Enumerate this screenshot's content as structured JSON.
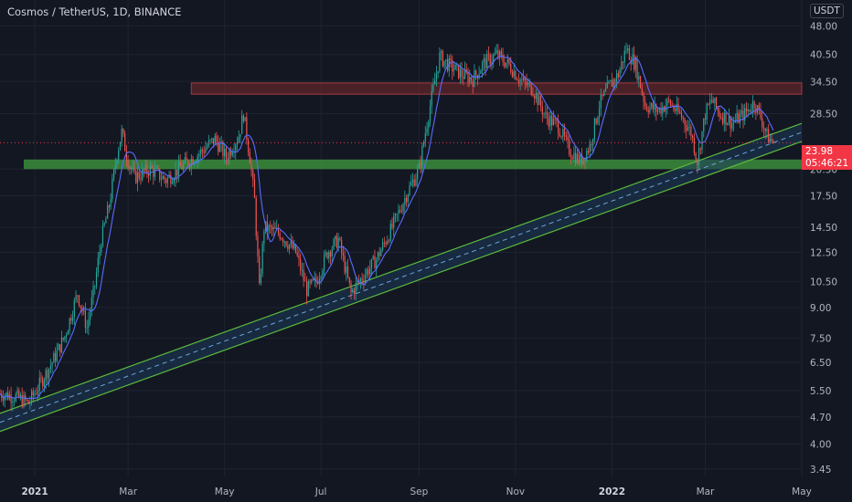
{
  "header": {
    "title": "Cosmos / TetherUS, 1D, BINANCE",
    "currency": "USDT",
    "cut_top_tick": "5"
  },
  "last_price": {
    "value": "23.98",
    "countdown": "05:46:21"
  },
  "colors": {
    "background": "#131722",
    "up_candle": "#26a69a",
    "down_candle": "#ef5350",
    "moving_average": "#5a6cff",
    "trendline": "#5dbb3a",
    "support_zone": "#3c8d3c",
    "resistance_zone": "#7a2a2e",
    "last_price_tag": "#f23645"
  },
  "chart_data": {
    "type": "candlestick",
    "scale": "log",
    "y_tick_labels": [
      "48.00",
      "40.50",
      "34.50",
      "28.50",
      "20.50",
      "17.50",
      "14.50",
      "12.50",
      "10.50",
      "9.00",
      "7.50",
      "6.50",
      "5.50",
      "4.70",
      "4.00",
      "3.45"
    ],
    "y_ticks": [
      48.0,
      40.5,
      34.5,
      28.5,
      20.5,
      17.5,
      14.5,
      12.5,
      10.5,
      9.0,
      7.5,
      6.5,
      5.5,
      4.7,
      4.0,
      3.45
    ],
    "ylim": [
      3.3,
      56
    ],
    "x_tick_labels": [
      "2021",
      "Mar",
      "May",
      "Jul",
      "Sep",
      "Nov",
      "2022",
      "Mar",
      "May"
    ],
    "x_ticks": [
      "2021-01-01",
      "2021-03-01",
      "2021-05-01",
      "2021-07-01",
      "2021-09-01",
      "2021-11-01",
      "2022-01-01",
      "2022-03-01",
      "2022-05-01"
    ],
    "xlim": [
      "2020-12-10",
      "2022-05-01"
    ],
    "last_date": "2022-04-13",
    "grid": true,
    "price_path": [
      [
        "2020-12-10",
        5.4
      ],
      [
        "2020-12-20",
        5.3
      ],
      [
        "2020-12-28",
        5.1
      ],
      [
        "2021-01-03",
        5.6
      ],
      [
        "2021-01-12",
        6.5
      ],
      [
        "2021-01-20",
        7.6
      ],
      [
        "2021-01-28",
        9.8
      ],
      [
        "2021-02-03",
        8.0
      ],
      [
        "2021-02-08",
        10.3
      ],
      [
        "2021-02-12",
        13.5
      ],
      [
        "2021-02-17",
        16.5
      ],
      [
        "2021-02-22",
        22.5
      ],
      [
        "2021-02-25",
        25.5
      ],
      [
        "2021-03-01",
        21.5
      ],
      [
        "2021-03-05",
        19.5
      ],
      [
        "2021-03-15",
        20.5
      ],
      [
        "2021-03-25",
        19.2
      ],
      [
        "2021-04-05",
        21.0
      ],
      [
        "2021-04-15",
        22.5
      ],
      [
        "2021-04-25",
        24.5
      ],
      [
        "2021-05-02",
        22.0
      ],
      [
        "2021-05-10",
        25.0
      ],
      [
        "2021-05-13",
        28.5
      ],
      [
        "2021-05-17",
        22.0
      ],
      [
        "2021-05-20",
        17.0
      ],
      [
        "2021-05-23",
        10.0
      ],
      [
        "2021-05-26",
        14.5
      ],
      [
        "2021-06-05",
        14.0
      ],
      [
        "2021-06-15",
        12.5
      ],
      [
        "2021-06-22",
        10.0
      ],
      [
        "2021-06-28",
        10.5
      ],
      [
        "2021-07-05",
        12.5
      ],
      [
        "2021-07-12",
        13.5
      ],
      [
        "2021-07-20",
        9.8
      ],
      [
        "2021-07-25",
        10.5
      ],
      [
        "2021-08-05",
        12.0
      ],
      [
        "2021-08-15",
        14.5
      ],
      [
        "2021-08-25",
        18.0
      ],
      [
        "2021-09-01",
        20.5
      ],
      [
        "2021-09-06",
        27.0
      ],
      [
        "2021-09-10",
        33.0
      ],
      [
        "2021-09-14",
        40.0
      ],
      [
        "2021-09-20",
        38.0
      ],
      [
        "2021-09-28",
        36.0
      ],
      [
        "2021-10-05",
        35.0
      ],
      [
        "2021-10-12",
        38.5
      ],
      [
        "2021-10-20",
        40.5
      ],
      [
        "2021-10-28",
        38.0
      ],
      [
        "2021-11-05",
        34.5
      ],
      [
        "2021-11-12",
        33.0
      ],
      [
        "2021-11-20",
        28.0
      ],
      [
        "2021-11-28",
        26.5
      ],
      [
        "2021-12-05",
        23.0
      ],
      [
        "2021-12-12",
        21.5
      ],
      [
        "2021-12-18",
        23.5
      ],
      [
        "2021-12-24",
        30.0
      ],
      [
        "2021-12-30",
        33.5
      ],
      [
        "2022-01-05",
        36.0
      ],
      [
        "2022-01-10",
        42.0
      ],
      [
        "2022-01-16",
        38.0
      ],
      [
        "2022-01-22",
        30.0
      ],
      [
        "2022-01-30",
        29.0
      ],
      [
        "2022-02-06",
        30.5
      ],
      [
        "2022-02-14",
        28.0
      ],
      [
        "2022-02-20",
        25.5
      ],
      [
        "2022-02-24",
        21.5
      ],
      [
        "2022-03-01",
        28.5
      ],
      [
        "2022-03-05",
        31.0
      ],
      [
        "2022-03-10",
        28.5
      ],
      [
        "2022-03-18",
        27.0
      ],
      [
        "2022-03-26",
        28.5
      ],
      [
        "2022-04-01",
        30.5
      ],
      [
        "2022-04-05",
        28.0
      ],
      [
        "2022-04-09",
        25.0
      ],
      [
        "2022-04-13",
        23.98
      ]
    ],
    "zones": {
      "resistance": {
        "from": 32.0,
        "to": 34.2,
        "start": "2021-04-10",
        "end": "2022-05-01"
      },
      "support": {
        "from": 20.5,
        "to": 21.7,
        "start": "2020-12-25",
        "end": "2022-05-01"
      }
    },
    "ascending_channel": {
      "start": {
        "date": "2020-12-10",
        "value": 4.55
      },
      "end": {
        "date": "2022-05-01",
        "value": 25.5
      },
      "band_ratio": 1.055
    }
  }
}
